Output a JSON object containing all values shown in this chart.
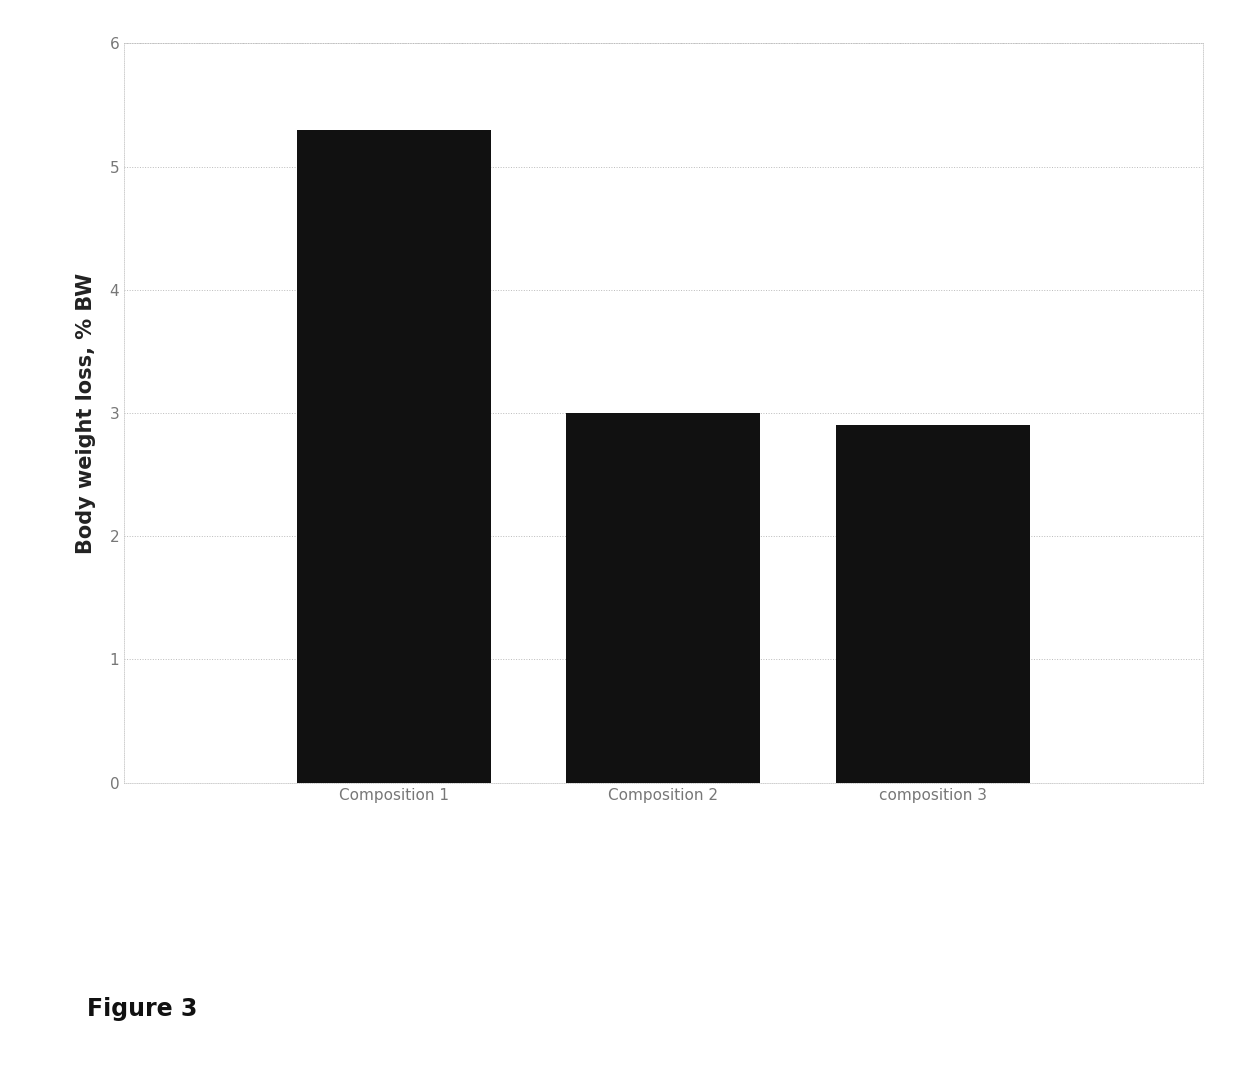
{
  "categories": [
    "Composition 1",
    "Composition 2",
    "composition 3"
  ],
  "values": [
    5.3,
    3.0,
    2.9
  ],
  "bar_color": "#111111",
  "ylabel": "Body weight loss, % BW",
  "ylim": [
    0,
    6
  ],
  "yticks": [
    0,
    1,
    2,
    3,
    4,
    5,
    6
  ],
  "figure_caption": "Figure 3",
  "background_color": "#ffffff",
  "bar_width": 0.18,
  "grid_color": "#bbbbbb",
  "grid_linestyle": ":",
  "grid_linewidth": 0.7,
  "ylabel_fontsize": 15,
  "tick_fontsize": 11,
  "caption_fontsize": 17,
  "tick_color": "#777777"
}
